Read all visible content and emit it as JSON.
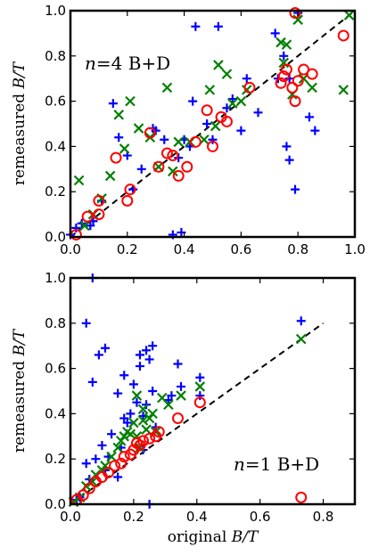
{
  "chart_data": [
    {
      "type": "scatter",
      "annotation": {
        "pre": "n",
        "mid": "=4",
        "post": " B+D"
      },
      "xlabel": "",
      "ylabel": {
        "text": "remeasured ",
        "var": "B/T"
      },
      "xlim": [
        0,
        1
      ],
      "ylim": [
        0,
        1
      ],
      "xticks": [
        "0.0",
        "0.2",
        "0.4",
        "0.6",
        "0.8",
        "1.0"
      ],
      "yticks": [
        "0.0",
        "0.2",
        "0.4",
        "0.6",
        "0.8",
        "1.0"
      ],
      "reference_line": {
        "x": [
          0,
          1
        ],
        "y": [
          0,
          1
        ],
        "style": "dashed",
        "color": "#000000"
      },
      "series": [
        {
          "marker": "plus",
          "color": "#0000ff",
          "points": [
            [
              0.0,
              0.01
            ],
            [
              0.02,
              0.04
            ],
            [
              0.04,
              0.06
            ],
            [
              0.07,
              0.05
            ],
            [
              0.08,
              0.07
            ],
            [
              0.11,
              0.16
            ],
            [
              0.15,
              0.59
            ],
            [
              0.17,
              0.44
            ],
            [
              0.2,
              0.36
            ],
            [
              0.22,
              0.21
            ],
            [
              0.25,
              0.3
            ],
            [
              0.29,
              0.48
            ],
            [
              0.3,
              0.47
            ],
            [
              0.33,
              0.43
            ],
            [
              0.36,
              0.01
            ],
            [
              0.38,
              0.35
            ],
            [
              0.39,
              0.02
            ],
            [
              0.4,
              0.43
            ],
            [
              0.42,
              0.4
            ],
            [
              0.43,
              0.6
            ],
            [
              0.44,
              0.93
            ],
            [
              0.48,
              0.5
            ],
            [
              0.5,
              0.43
            ],
            [
              0.52,
              0.93
            ],
            [
              0.55,
              0.57
            ],
            [
              0.57,
              0.61
            ],
            [
              0.6,
              0.47
            ],
            [
              0.62,
              0.7
            ],
            [
              0.66,
              0.55
            ],
            [
              0.72,
              0.9
            ],
            [
              0.73,
              0.7
            ],
            [
              0.75,
              0.8
            ],
            [
              0.76,
              0.4
            ],
            [
              0.77,
              0.34
            ],
            [
              0.77,
              0.7
            ],
            [
              0.79,
              0.21
            ],
            [
              0.8,
              0.99
            ],
            [
              0.84,
              0.53
            ],
            [
              0.86,
              0.47
            ]
          ]
        },
        {
          "marker": "x",
          "color": "#008000",
          "points": [
            [
              0.03,
              0.25
            ],
            [
              0.05,
              0.05
            ],
            [
              0.08,
              0.1
            ],
            [
              0.11,
              0.17
            ],
            [
              0.14,
              0.27
            ],
            [
              0.17,
              0.54
            ],
            [
              0.19,
              0.39
            ],
            [
              0.21,
              0.6
            ],
            [
              0.24,
              0.48
            ],
            [
              0.28,
              0.44
            ],
            [
              0.31,
              0.31
            ],
            [
              0.34,
              0.66
            ],
            [
              0.36,
              0.29
            ],
            [
              0.38,
              0.42
            ],
            [
              0.42,
              0.42
            ],
            [
              0.47,
              0.43
            ],
            [
              0.49,
              0.65
            ],
            [
              0.51,
              0.49
            ],
            [
              0.52,
              0.76
            ],
            [
              0.55,
              0.72
            ],
            [
              0.57,
              0.59
            ],
            [
              0.6,
              0.6
            ],
            [
              0.62,
              0.65
            ],
            [
              0.74,
              0.86
            ],
            [
              0.75,
              0.77
            ],
            [
              0.76,
              0.85
            ],
            [
              0.78,
              0.63
            ],
            [
              0.8,
              0.96
            ],
            [
              0.82,
              0.7
            ],
            [
              0.85,
              0.66
            ],
            [
              0.96,
              0.65
            ],
            [
              0.98,
              0.98
            ]
          ]
        },
        {
          "marker": "circle",
          "color": "#ff0000",
          "points": [
            [
              0.02,
              0.01
            ],
            [
              0.06,
              0.09
            ],
            [
              0.1,
              0.16
            ],
            [
              0.1,
              0.1
            ],
            [
              0.16,
              0.35
            ],
            [
              0.2,
              0.16
            ],
            [
              0.21,
              0.21
            ],
            [
              0.28,
              0.46
            ],
            [
              0.31,
              0.31
            ],
            [
              0.34,
              0.37
            ],
            [
              0.36,
              0.36
            ],
            [
              0.38,
              0.27
            ],
            [
              0.41,
              0.31
            ],
            [
              0.44,
              0.42
            ],
            [
              0.48,
              0.56
            ],
            [
              0.5,
              0.4
            ],
            [
              0.53,
              0.53
            ],
            [
              0.55,
              0.51
            ],
            [
              0.63,
              0.66
            ],
            [
              0.74,
              0.68
            ],
            [
              0.75,
              0.71
            ],
            [
              0.76,
              0.74
            ],
            [
              0.78,
              0.66
            ],
            [
              0.79,
              0.6
            ],
            [
              0.8,
              0.69
            ],
            [
              0.82,
              0.74
            ],
            [
              0.85,
              0.72
            ],
            [
              0.96,
              0.89
            ],
            [
              0.79,
              0.99
            ]
          ]
        }
      ]
    },
    {
      "type": "scatter",
      "annotation": {
        "pre": "n",
        "mid": "=1",
        "post": " B+D"
      },
      "xlabel": {
        "text": "original ",
        "var": "B/T"
      },
      "ylabel": {
        "text": "remeasured ",
        "var": "B/T"
      },
      "xlim": [
        0,
        0.9
      ],
      "ylim": [
        0,
        1
      ],
      "xticks": [
        "0.0",
        "0.2",
        "0.4",
        "0.6",
        "0.8"
      ],
      "yticks": [
        "0.0",
        "0.2",
        "0.4",
        "0.6",
        "0.8",
        "1.0"
      ],
      "reference_line": {
        "x": [
          0,
          0.8
        ],
        "y": [
          0,
          0.8
        ],
        "style": "dashed",
        "color": "#000000"
      },
      "series": [
        {
          "marker": "plus",
          "color": "#0000ff",
          "points": [
            [
              0.02,
              0.02
            ],
            [
              0.03,
              0.03
            ],
            [
              0.05,
              0.8
            ],
            [
              0.05,
              0.18
            ],
            [
              0.06,
              0.11
            ],
            [
              0.07,
              0.54
            ],
            [
              0.08,
              0.2
            ],
            [
              0.09,
              0.66
            ],
            [
              0.1,
              0.26
            ],
            [
              0.11,
              0.69
            ],
            [
              0.11,
              0.15
            ],
            [
              0.12,
              0.21
            ],
            [
              0.13,
              0.31
            ],
            [
              0.15,
              0.49
            ],
            [
              0.15,
              0.12
            ],
            [
              0.16,
              0.25
            ],
            [
              0.17,
              0.57
            ],
            [
              0.17,
              0.38
            ],
            [
              0.18,
              0.36
            ],
            [
              0.19,
              0.4
            ],
            [
              0.2,
              0.53
            ],
            [
              0.21,
              0.45
            ],
            [
              0.22,
              0.66
            ],
            [
              0.22,
              0.61
            ],
            [
              0.23,
              0.39
            ],
            [
              0.23,
              0.24
            ],
            [
              0.24,
              0.44
            ],
            [
              0.24,
              0.68
            ],
            [
              0.25,
              0.64
            ],
            [
              0.26,
              0.7
            ],
            [
              0.26,
              0.5
            ],
            [
              0.27,
              0.34
            ],
            [
              0.31,
              0.46
            ],
            [
              0.32,
              0.48
            ],
            [
              0.34,
              0.62
            ],
            [
              0.35,
              0.52
            ],
            [
              0.41,
              0.56
            ],
            [
              0.41,
              0.48
            ],
            [
              0.73,
              0.81
            ],
            [
              0.25,
              0.0
            ],
            [
              0.07,
              1.0
            ]
          ]
        },
        {
          "marker": "x",
          "color": "#008000",
          "points": [
            [
              0.01,
              0.01
            ],
            [
              0.03,
              0.03
            ],
            [
              0.05,
              0.08
            ],
            [
              0.07,
              0.1
            ],
            [
              0.08,
              0.13
            ],
            [
              0.1,
              0.15
            ],
            [
              0.11,
              0.17
            ],
            [
              0.13,
              0.21
            ],
            [
              0.15,
              0.25
            ],
            [
              0.16,
              0.28
            ],
            [
              0.17,
              0.3
            ],
            [
              0.18,
              0.32
            ],
            [
              0.19,
              0.31
            ],
            [
              0.2,
              0.36
            ],
            [
              0.21,
              0.3
            ],
            [
              0.21,
              0.48
            ],
            [
              0.22,
              0.25
            ],
            [
              0.23,
              0.37
            ],
            [
              0.23,
              0.42
            ],
            [
              0.24,
              0.33
            ],
            [
              0.25,
              0.38
            ],
            [
              0.26,
              0.4
            ],
            [
              0.27,
              0.32
            ],
            [
              0.29,
              0.47
            ],
            [
              0.31,
              0.44
            ],
            [
              0.35,
              0.48
            ],
            [
              0.41,
              0.52
            ],
            [
              0.73,
              0.73
            ]
          ]
        },
        {
          "marker": "circle",
          "color": "#ff0000",
          "points": [
            [
              0.02,
              0.02
            ],
            [
              0.04,
              0.04
            ],
            [
              0.06,
              0.07
            ],
            [
              0.08,
              0.1
            ],
            [
              0.1,
              0.12
            ],
            [
              0.12,
              0.14
            ],
            [
              0.14,
              0.17
            ],
            [
              0.16,
              0.18
            ],
            [
              0.17,
              0.21
            ],
            [
              0.19,
              0.22
            ],
            [
              0.2,
              0.24
            ],
            [
              0.21,
              0.27
            ],
            [
              0.22,
              0.26
            ],
            [
              0.23,
              0.28
            ],
            [
              0.25,
              0.29
            ],
            [
              0.27,
              0.3
            ],
            [
              0.28,
              0.32
            ],
            [
              0.34,
              0.38
            ],
            [
              0.41,
              0.45
            ],
            [
              0.73,
              0.03
            ]
          ]
        }
      ]
    }
  ]
}
